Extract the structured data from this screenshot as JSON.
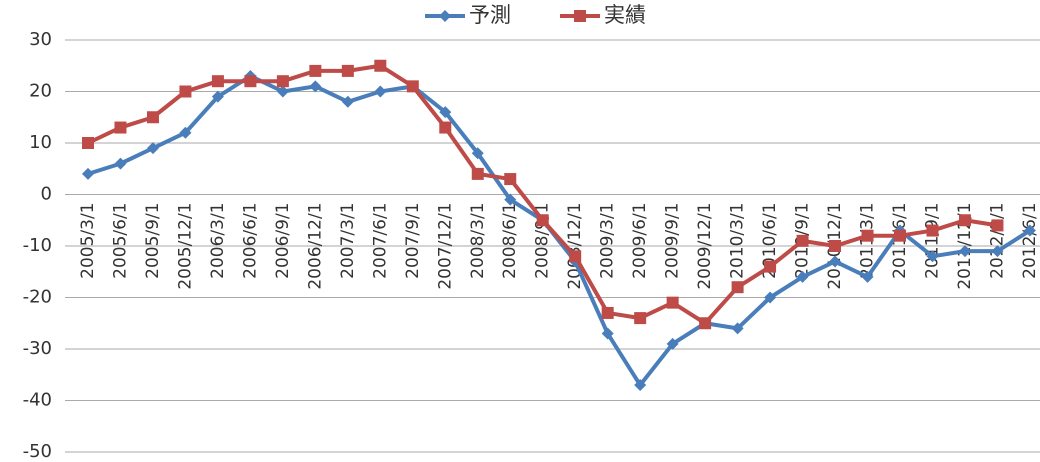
{
  "chart_data": {
    "type": "line",
    "categories": [
      "2005/3/1",
      "2005/6/1",
      "2005/9/1",
      "2005/12/1",
      "2006/3/1",
      "2006/6/1",
      "2006/9/1",
      "2006/12/1",
      "2007/3/1",
      "2007/6/1",
      "2007/9/1",
      "2007/12/1",
      "2008/3/1",
      "2008/6/1",
      "2008/9/1",
      "2008/12/1",
      "2009/3/1",
      "2009/6/1",
      "2009/9/1",
      "2009/12/1",
      "2010/3/1",
      "2010/6/1",
      "2010/9/1",
      "2010/12/1",
      "2011/3/1",
      "2011/6/1",
      "2011/9/1",
      "2011/12/1",
      "2012/3/1",
      "2012/6/1"
    ],
    "series": [
      {
        "name": "予測",
        "color": "#4a7ebb",
        "marker": "diamond",
        "values": [
          4,
          6,
          9,
          12,
          19,
          23,
          20,
          21,
          18,
          20,
          21,
          16,
          8,
          -1,
          -5,
          -13,
          -27,
          -37,
          -29,
          -25,
          -26,
          -20,
          -16,
          -13,
          -16,
          -7,
          -12,
          -11,
          -11,
          -7
        ]
      },
      {
        "name": "実績",
        "color": "#be4b48",
        "marker": "square",
        "values": [
          10,
          13,
          15,
          20,
          22,
          22,
          22,
          24,
          24,
          25,
          21,
          13,
          4,
          3,
          -5,
          -12,
          -23,
          -24,
          -21,
          -25,
          -18,
          -14,
          -9,
          -10,
          -8,
          -8,
          -7,
          -5,
          -6,
          null
        ]
      }
    ],
    "ylim": [
      -50,
      30
    ],
    "yticks": [
      30,
      20,
      10,
      0,
      -10,
      -20,
      -30,
      -40,
      -50
    ],
    "grid": true,
    "legend": "top"
  }
}
